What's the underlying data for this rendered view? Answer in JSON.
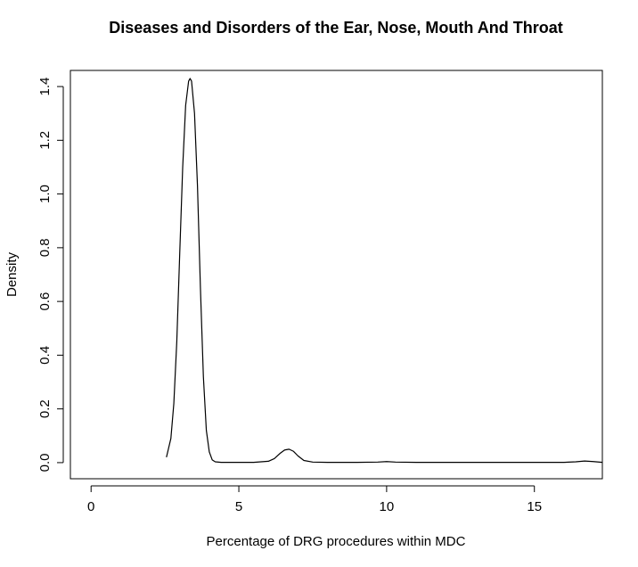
{
  "chart_data": {
    "type": "line",
    "title": "Diseases and Disorders of the Ear, Nose, Mouth And Throat",
    "xlabel": "Percentage of DRG procedures within MDC",
    "ylabel": "Density",
    "xlim": [
      -0.7,
      17.3
    ],
    "ylim": [
      -0.06,
      1.46
    ],
    "x_ticks": [
      0,
      5,
      10,
      15
    ],
    "x_tick_labels": [
      "0",
      "5",
      "10",
      "15"
    ],
    "y_ticks": [
      0.0,
      0.2,
      0.4,
      0.6,
      0.8,
      1.0,
      1.2,
      1.4
    ],
    "y_tick_labels": [
      "0.0",
      "0.2",
      "0.4",
      "0.6",
      "0.8",
      "1.0",
      "1.2",
      "1.4"
    ],
    "grid": false,
    "legend": "none",
    "series": [
      {
        "x": [
          2.55,
          2.7,
          2.8,
          2.9,
          3.0,
          3.1,
          3.2,
          3.3,
          3.35,
          3.4,
          3.5,
          3.6,
          3.7,
          3.8,
          3.9,
          4.0,
          4.1,
          4.2,
          4.4,
          4.6,
          5.0,
          5.5,
          6.0,
          6.2,
          6.4,
          6.55,
          6.7,
          6.85,
          7.0,
          7.2,
          7.5,
          8.0,
          9.0,
          9.7,
          10.0,
          10.3,
          11.0,
          13.0,
          15.0,
          16.0,
          16.4,
          16.7,
          17.0,
          17.3
        ],
        "y": [
          0.02,
          0.09,
          0.22,
          0.45,
          0.78,
          1.1,
          1.33,
          1.42,
          1.43,
          1.42,
          1.3,
          1.03,
          0.65,
          0.32,
          0.12,
          0.04,
          0.01,
          0.003,
          0.001,
          0.001,
          0.001,
          0.001,
          0.005,
          0.015,
          0.035,
          0.047,
          0.05,
          0.042,
          0.025,
          0.008,
          0.002,
          0.001,
          0.001,
          0.002,
          0.004,
          0.002,
          0.001,
          0.001,
          0.001,
          0.001,
          0.003,
          0.006,
          0.004,
          0.001
        ]
      }
    ],
    "colors": {
      "line": "#000000",
      "axis": "#000000",
      "background": "#ffffff"
    }
  }
}
